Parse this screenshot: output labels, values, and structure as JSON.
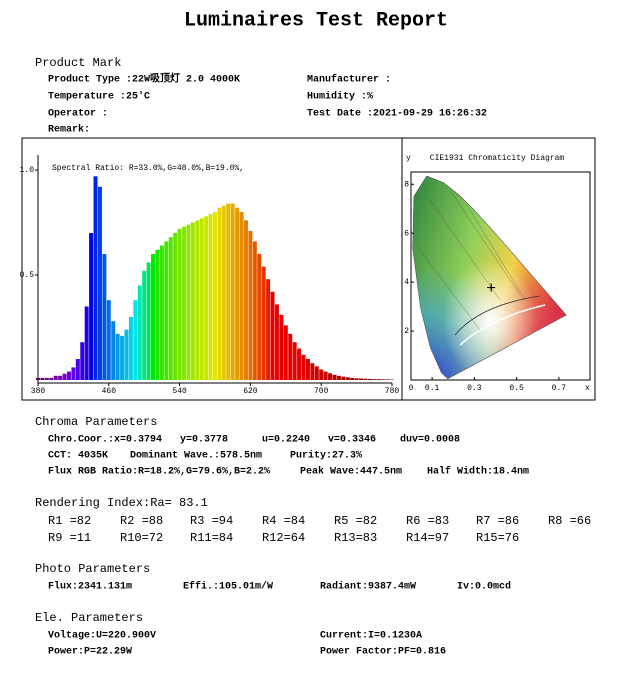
{
  "header": {
    "title": "Luminaires Test Report"
  },
  "product_mark": {
    "heading": "Product Mark",
    "rows": [
      [
        "Product Type :22W吸顶灯 2.0 4000K",
        "Manufacturer :"
      ],
      [
        "Temperature :25'C",
        "Humidity :%"
      ],
      [
        "Operator :",
        "Test Date :2021-09-29 16:26:32"
      ],
      [
        "Remark:"
      ]
    ]
  },
  "chart_data": [
    {
      "type": "bar",
      "annotation": "Spectral Ratio: R=33.0%,G=48.0%,B=19.0%,",
      "x": [
        380,
        385,
        390,
        395,
        400,
        405,
        410,
        415,
        420,
        425,
        430,
        435,
        440,
        445,
        450,
        455,
        460,
        465,
        470,
        475,
        480,
        485,
        490,
        495,
        500,
        505,
        510,
        515,
        520,
        525,
        530,
        535,
        540,
        545,
        550,
        555,
        560,
        565,
        570,
        575,
        580,
        585,
        590,
        595,
        600,
        605,
        610,
        615,
        620,
        625,
        630,
        635,
        640,
        645,
        650,
        655,
        660,
        665,
        670,
        675,
        680,
        685,
        690,
        695,
        700,
        705,
        710,
        715,
        720,
        725,
        730,
        735,
        740,
        745,
        750,
        755,
        760,
        765,
        770,
        775,
        780
      ],
      "values": [
        0.01,
        0.01,
        0.01,
        0.01,
        0.02,
        0.02,
        0.03,
        0.04,
        0.06,
        0.1,
        0.18,
        0.35,
        0.7,
        0.97,
        0.92,
        0.6,
        0.38,
        0.28,
        0.22,
        0.21,
        0.24,
        0.3,
        0.38,
        0.45,
        0.52,
        0.56,
        0.6,
        0.62,
        0.64,
        0.66,
        0.68,
        0.7,
        0.72,
        0.73,
        0.74,
        0.75,
        0.76,
        0.77,
        0.78,
        0.79,
        0.8,
        0.82,
        0.83,
        0.84,
        0.84,
        0.82,
        0.8,
        0.76,
        0.71,
        0.66,
        0.6,
        0.54,
        0.48,
        0.42,
        0.36,
        0.31,
        0.26,
        0.22,
        0.18,
        0.15,
        0.12,
        0.1,
        0.08,
        0.065,
        0.05,
        0.04,
        0.032,
        0.025,
        0.02,
        0.016,
        0.013,
        0.01,
        0.008,
        0.007,
        0.006,
        0.005,
        0.004,
        0.004,
        0.003,
        0.003,
        0.002
      ],
      "xlim": [
        380,
        780
      ],
      "xticks": [
        380,
        460,
        540,
        620,
        700,
        780
      ],
      "ylim": [
        0,
        1.05
      ],
      "yticks": [
        {
          "value": 1,
          "label": "1.0"
        },
        0.5
      ]
    },
    {
      "type": "scatter",
      "title": "CIE1931 Chromaticity Diagram",
      "x_label": "x",
      "y_label": "y",
      "x": [
        0.3794
      ],
      "values": [
        0.3778
      ],
      "color": "#000000",
      "xlim": [
        0,
        0.8
      ],
      "xticks": [
        0,
        0.1,
        0.3,
        0.5,
        0.7
      ],
      "ylim": [
        0,
        0.85
      ],
      "yticks": [
        {
          "value": 0.2,
          "label": ".2"
        },
        {
          "value": 0.4,
          "label": ".4"
        },
        {
          "value": 0.6,
          "label": ".6"
        },
        {
          "value": 0.8,
          "label": ".8"
        }
      ]
    }
  ],
  "chroma": {
    "heading": "Chroma Parameters",
    "rows": [
      [
        "Chro.Coor.:x=0.3794",
        "y=0.3778",
        "u=0.2240",
        "v=0.3346",
        "duv=0.0008"
      ],
      [
        "CCT: 4035K",
        "Dominant Wave.:578.5nm",
        "Purity:27.3%"
      ],
      [
        "Flux RGB Ratio:R=18.2%,G=79.6%,B=2.2%",
        "Peak Wave:447.5nm",
        "Half Width:18.4nm"
      ]
    ]
  },
  "rendering": {
    "heading": "Rendering Index:Ra= 83.1",
    "rows": [
      [
        "R1 =82",
        "R2 =88",
        "R3 =94",
        "R4 =84",
        "R5 =82",
        "R6 =83",
        "R7 =86",
        "R8 =66"
      ],
      [
        "R9 =11",
        "R10=72",
        "R11=84",
        "R12=64",
        "R13=83",
        "R14=97",
        "R15=76"
      ]
    ]
  },
  "photo": {
    "heading": "Photo Parameters",
    "rows": [
      [
        "Flux:2341.131m",
        "Effi.:105.01m/W",
        "Radiant:9387.4mW",
        "Iv:0.0mcd"
      ]
    ]
  },
  "electrical": {
    "heading": "Ele. Parameters",
    "rows": [
      [
        "Voltage:U=220.900V",
        "Current:I=0.1230A"
      ],
      [
        "Power:P=22.29W",
        "Power Factor:PF=0.816"
      ]
    ]
  }
}
